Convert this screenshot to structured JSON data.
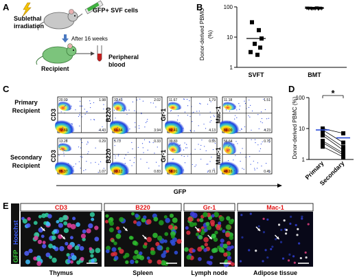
{
  "panels": {
    "A": "A",
    "B": "B",
    "C": "C",
    "D": "D",
    "E": "E"
  },
  "panel_a": {
    "irradiation": "Sublethal\nirradiation",
    "cells": "GFP+ SVF cells",
    "wait": "After 16 weeks",
    "recipient": "Recipient",
    "blood": "Peripheral\nblood"
  },
  "chart_data": [
    {
      "id": "B",
      "type": "scatter",
      "ylabel": "Donor-derived PBMC\n(%)",
      "yscale": "log",
      "ylim": [
        1,
        100
      ],
      "yticks": [
        "100",
        "10",
        "1"
      ],
      "categories": [
        "SVFT",
        "BMT"
      ],
      "series": [
        {
          "category": "SVFT",
          "values": [
            31,
            17,
            9,
            6,
            4.5,
            3.2,
            2.6
          ],
          "mean": 9
        },
        {
          "category": "BMT",
          "values": [
            92,
            89,
            91,
            87,
            90,
            88,
            93,
            86,
            91,
            89
          ],
          "mean": 90
        }
      ]
    },
    {
      "id": "D",
      "type": "scatter",
      "ylabel": "Donor-derived PBMC (%)",
      "yscale": "log",
      "ylim": [
        1,
        100
      ],
      "yticks": [
        "100",
        "10",
        "1"
      ],
      "categories": [
        "Primary",
        "Secondary"
      ],
      "annotation": "*",
      "pairs": [
        [
          10,
          7
        ],
        [
          9,
          3.5
        ],
        [
          7,
          2.5
        ],
        [
          6,
          2
        ],
        [
          4,
          1.6
        ],
        [
          3.5,
          1.4
        ],
        [
          2.6,
          1.2
        ]
      ],
      "means": [
        9,
        5
      ]
    }
  ],
  "panel_c": {
    "rows": [
      "Primary\nRecipient",
      "Secondary\nRecipient"
    ],
    "xlabel": "GFP",
    "plots": [
      {
        "ylabel": "CD3",
        "q": [
          "20.92",
          "1.98",
          "72.69",
          "4.43"
        ]
      },
      {
        "ylabel": "B220",
        "q": [
          "32.41",
          "2.02",
          "61.64",
          "3.94"
        ]
      },
      {
        "ylabel": "Gr-1",
        "q": [
          "11.67",
          "1.79",
          "82.41",
          "4.13"
        ]
      },
      {
        "ylabel": "Mac-1",
        "q": [
          "11.18",
          "1.51",
          "83.09",
          "4.23"
        ]
      },
      {
        "ylabel": "CD3",
        "q": [
          "13.28",
          "0.29",
          "85.37",
          "1.07"
        ]
      },
      {
        "ylabel": "B220",
        "q": [
          "5.73",
          "0.33",
          "93.12",
          "0.83"
        ]
      },
      {
        "ylabel": "Gr-1",
        "q": [
          "39.83",
          "0.55",
          "58.91",
          "0.71"
        ]
      },
      {
        "ylabel": "Mac-1",
        "q": [
          "56.64",
          "0.76",
          "40.16",
          "0.45"
        ]
      }
    ]
  },
  "panel_e": {
    "side_gfp": "GFP",
    "side_hoechst": "Hoechst",
    "markers": [
      "CD3",
      "B220",
      "Gr-1",
      "Mac-1"
    ],
    "tissues": [
      "Thymus",
      "Spleen",
      "Lymph node",
      "Adipose tissue"
    ]
  }
}
